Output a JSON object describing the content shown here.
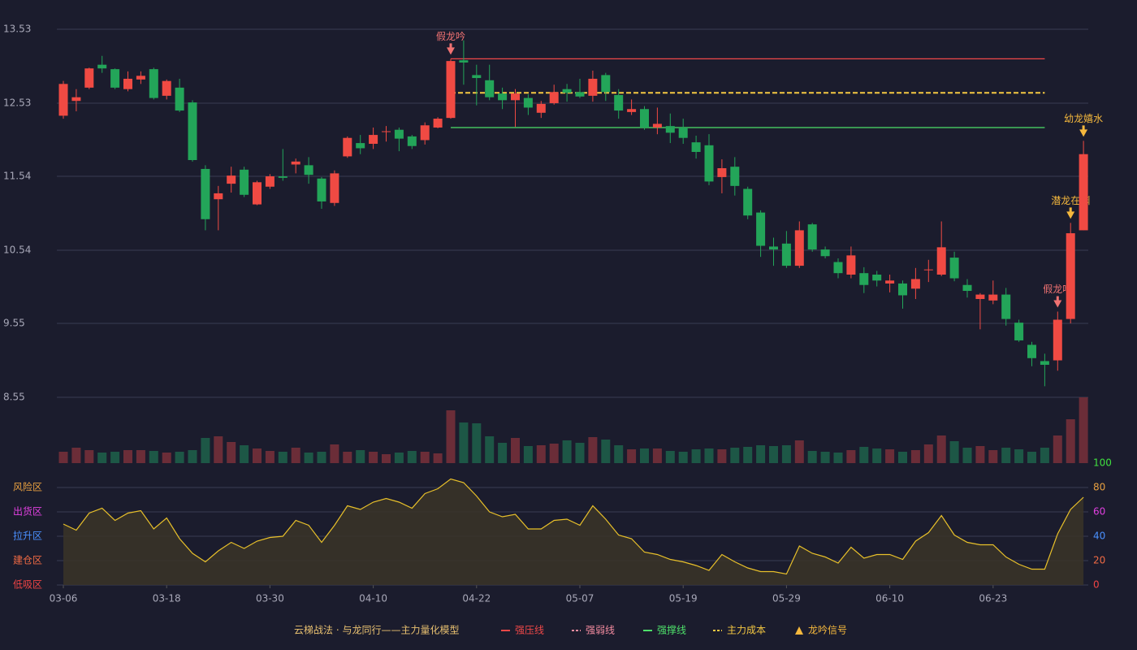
{
  "chart_data": [
    {
      "type": "candlestick",
      "categories": [
        "03-06",
        null,
        null,
        null,
        null,
        null,
        null,
        null,
        "03-18",
        null,
        null,
        null,
        null,
        null,
        null,
        null,
        "03-30",
        null,
        null,
        null,
        null,
        null,
        null,
        null,
        "04-10",
        null,
        null,
        null,
        null,
        null,
        null,
        null,
        "04-22",
        null,
        null,
        null,
        null,
        null,
        null,
        null,
        "05-07",
        null,
        null,
        null,
        null,
        null,
        null,
        null,
        "05-19",
        null,
        null,
        null,
        null,
        null,
        null,
        null,
        "05-29",
        null,
        null,
        null,
        null,
        null,
        null,
        null,
        "06-10",
        null,
        null,
        null,
        null,
        null,
        null,
        null,
        "06-23",
        null,
        null,
        null,
        null,
        null,
        null,
        null
      ],
      "open": [
        12.36,
        12.56,
        12.74,
        13.05,
        12.99,
        12.72,
        12.85,
        12.99,
        12.63,
        12.74,
        12.54,
        11.64,
        11.23,
        11.44,
        11.63,
        11.16,
        11.4,
        11.54,
        11.7,
        11.69,
        11.51,
        11.18,
        11.81,
        11.99,
        11.98,
        12.14,
        12.17,
        12.08,
        12.03,
        12.2,
        12.33,
        13.11,
        12.91,
        12.84,
        12.66,
        12.57,
        12.6,
        12.4,
        12.53,
        12.72,
        12.68,
        12.63,
        12.91,
        12.64,
        12.41,
        12.45,
        12.2,
        12.22,
        12.2,
        12.0,
        11.96,
        11.53,
        11.67,
        11.37,
        11.05,
        10.59,
        10.63,
        10.33,
        10.89,
        10.55,
        10.38,
        10.21,
        10.23,
        10.21,
        10.09,
        10.09,
        10.02,
        10.27,
        10.21,
        10.44,
        10.07,
        9.88,
        9.86,
        9.94,
        9.56,
        9.26,
        9.04,
        9.05,
        9.61,
        10.81
      ],
      "high": [
        12.83,
        12.72,
        13.01,
        13.17,
        13.0,
        12.96,
        12.96,
        13.01,
        12.85,
        12.86,
        12.57,
        11.69,
        11.41,
        11.67,
        11.67,
        11.48,
        11.57,
        11.91,
        11.78,
        11.8,
        11.53,
        11.62,
        12.08,
        12.1,
        12.2,
        12.22,
        12.2,
        12.1,
        12.27,
        12.34,
        13.13,
        13.38,
        13.05,
        13.05,
        12.74,
        12.72,
        12.65,
        12.56,
        12.78,
        12.79,
        12.86,
        12.97,
        12.94,
        12.72,
        12.58,
        12.49,
        12.47,
        12.39,
        12.32,
        12.09,
        12.11,
        11.77,
        11.8,
        11.4,
        11.08,
        10.71,
        10.8,
        10.93,
        10.91,
        10.59,
        10.43,
        10.59,
        10.31,
        10.26,
        10.21,
        10.13,
        10.3,
        10.41,
        10.93,
        10.52,
        10.15,
        9.96,
        10.13,
        10.03,
        9.6,
        9.3,
        9.14,
        9.71,
        10.91,
        12.02
      ],
      "low": [
        12.32,
        12.42,
        12.72,
        12.94,
        12.72,
        12.69,
        12.79,
        12.58,
        12.58,
        12.41,
        11.74,
        10.81,
        10.81,
        11.32,
        11.26,
        11.15,
        11.37,
        11.48,
        11.58,
        11.44,
        11.1,
        11.14,
        11.79,
        11.84,
        11.91,
        12.01,
        11.88,
        11.91,
        11.97,
        12.19,
        12.32,
        12.78,
        12.5,
        12.57,
        12.45,
        12.21,
        12.37,
        12.33,
        12.51,
        12.55,
        12.6,
        12.55,
        12.56,
        12.32,
        12.37,
        12.17,
        12.11,
        11.99,
        11.98,
        11.78,
        11.42,
        11.31,
        11.28,
        10.96,
        10.45,
        10.33,
        10.3,
        10.3,
        10.52,
        10.43,
        10.16,
        10.16,
        9.96,
        10.05,
        9.97,
        9.75,
        9.88,
        10.11,
        10.19,
        10.12,
        9.9,
        9.47,
        9.81,
        9.52,
        9.3,
        8.97,
        8.7,
        8.91,
        9.55,
        10.81
      ],
      "close": [
        12.79,
        12.61,
        13.0,
        13.0,
        12.74,
        12.86,
        12.9,
        12.6,
        12.83,
        12.43,
        11.76,
        10.96,
        11.31,
        11.55,
        11.29,
        11.46,
        11.54,
        11.52,
        11.74,
        11.56,
        11.2,
        11.58,
        12.06,
        11.92,
        12.1,
        12.15,
        12.05,
        11.95,
        12.23,
        12.32,
        13.1,
        13.08,
        12.87,
        12.61,
        12.57,
        12.66,
        12.47,
        12.52,
        12.68,
        12.67,
        12.62,
        12.86,
        12.68,
        12.43,
        12.45,
        12.2,
        12.25,
        12.13,
        12.06,
        11.87,
        11.47,
        11.65,
        11.41,
        11.01,
        10.6,
        10.55,
        10.33,
        10.81,
        10.55,
        10.46,
        10.23,
        10.47,
        10.07,
        10.13,
        10.13,
        9.93,
        10.15,
        10.28,
        10.58,
        10.16,
        9.99,
        9.94,
        9.94,
        9.61,
        9.32,
        9.08,
        8.99,
        9.6,
        10.77,
        11.84
      ],
      "up_color": "#f04a43",
      "down_color": "#23a559",
      "ylim": [
        8.55,
        13.53
      ],
      "yticks": [
        8.55,
        9.55,
        10.54,
        11.54,
        12.53,
        13.53
      ],
      "grid": true,
      "signals": [
        null,
        null,
        null,
        null,
        null,
        null,
        null,
        null,
        null,
        null,
        null,
        null,
        null,
        null,
        null,
        null,
        null,
        null,
        null,
        null,
        null,
        null,
        null,
        null,
        null,
        null,
        null,
        null,
        null,
        null,
        {
          "text": "假龙吟",
          "color": "#f07272"
        },
        null,
        null,
        null,
        null,
        null,
        null,
        null,
        null,
        null,
        null,
        null,
        null,
        null,
        null,
        null,
        null,
        null,
        null,
        null,
        null,
        null,
        null,
        null,
        null,
        null,
        null,
        null,
        null,
        null,
        null,
        null,
        null,
        null,
        null,
        null,
        null,
        null,
        null,
        null,
        null,
        null,
        null,
        null,
        null,
        null,
        null,
        {
          "text": "假龙吟",
          "color": "#f07272"
        },
        {
          "text": "潜龙在渊",
          "color": "#f5b83d"
        },
        {
          "text": "幼龙嬉水",
          "color": "#f5b83d"
        }
      ],
      "signal_name": "龙吟信号",
      "signal_color": "#f5b83d",
      "levels": [
        {
          "name": "强压线",
          "color": "#f04848",
          "style": "solid",
          "value": 13.13
        },
        {
          "name": "强弱线",
          "color": "#f58ca0",
          "style": "dashed",
          "value": null
        },
        {
          "name": "强撑线",
          "color": "#4ee06a",
          "style": "solid",
          "value": 12.2
        },
        {
          "name": "主力成本",
          "color": "#f5c842",
          "style": "dashed",
          "value": 12.67
        }
      ],
      "legend_title": "云梯战法 · 与龙同行——主力量化模型"
    },
    {
      "type": "volume",
      "values": [
        14,
        19,
        16,
        13,
        14,
        16,
        16,
        15,
        13,
        14,
        16,
        31,
        33,
        26,
        22,
        18,
        15,
        14,
        19,
        13,
        14,
        23,
        14,
        16,
        14,
        11,
        13,
        15,
        14,
        12,
        65,
        50,
        49,
        33,
        25,
        31,
        21,
        22,
        24,
        28,
        25,
        32,
        29,
        22,
        17,
        18,
        18,
        15,
        14,
        17,
        18,
        17,
        19,
        20,
        22,
        21,
        22,
        28,
        15,
        14,
        13,
        16,
        20,
        18,
        17,
        14,
        16,
        23,
        34,
        27,
        19,
        21,
        16,
        19,
        17,
        14,
        19,
        34,
        54,
        81
      ],
      "up_color": "#6b2d38",
      "down_color": "#1d5746"
    },
    {
      "type": "area",
      "values": [
        50,
        45,
        59,
        63,
        53,
        59,
        61,
        46,
        55,
        38,
        26,
        19,
        28,
        35,
        30,
        36,
        39,
        40,
        53,
        49,
        35,
        49,
        65,
        62,
        68,
        71,
        68,
        63,
        75,
        79,
        87,
        84,
        73,
        60,
        56,
        58,
        46,
        46,
        53,
        54,
        49,
        65,
        54,
        41,
        38,
        27,
        25,
        21,
        19,
        16,
        12,
        25,
        19,
        14,
        11,
        11,
        9,
        32,
        26,
        23,
        18,
        31,
        22,
        25,
        25,
        21,
        36,
        43,
        57,
        41,
        35,
        33,
        33,
        23,
        17,
        13,
        13,
        42,
        62,
        72
      ],
      "color": "#e8c02a",
      "fill": "#3a3428",
      "ylim": [
        0,
        100
      ],
      "yticks": [
        0,
        20,
        40,
        60,
        80,
        100
      ],
      "tick_colors": [
        "#f04444",
        "#f06a44",
        "#4a90ff",
        "#e040e0",
        "#e8a040",
        "#40e040"
      ],
      "zone_labels": [
        "低吸区",
        "建仓区",
        "拉升区",
        "出货区",
        "风险区",
        null
      ]
    }
  ]
}
